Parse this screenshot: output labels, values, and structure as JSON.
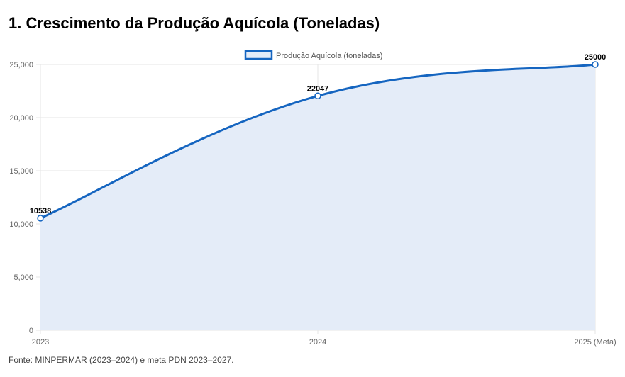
{
  "title": "1. Crescimento da Produção Aquícola (Toneladas)",
  "source": "Fonte: MINPERMAR (2023–2024) e meta PDN 2023–2027.",
  "colors": {
    "line": "#1565c0",
    "fill": "#e4ecf8",
    "grid": "#e6e6e6"
  },
  "chart_data": {
    "type": "area",
    "categories": [
      "2023",
      "2024",
      "2025 (Meta)"
    ],
    "series": [
      {
        "name": "Produção Aquícola (toneladas)",
        "values": [
          10538,
          22047,
          25000
        ]
      }
    ],
    "data_labels": [
      "10538",
      "22047",
      "25000"
    ],
    "y_ticks": [
      "0",
      "5,000",
      "10,000",
      "15,000",
      "20,000",
      "25,000"
    ],
    "ylim": [
      0,
      25000
    ],
    "legend_position": "top-center",
    "grid": true
  }
}
